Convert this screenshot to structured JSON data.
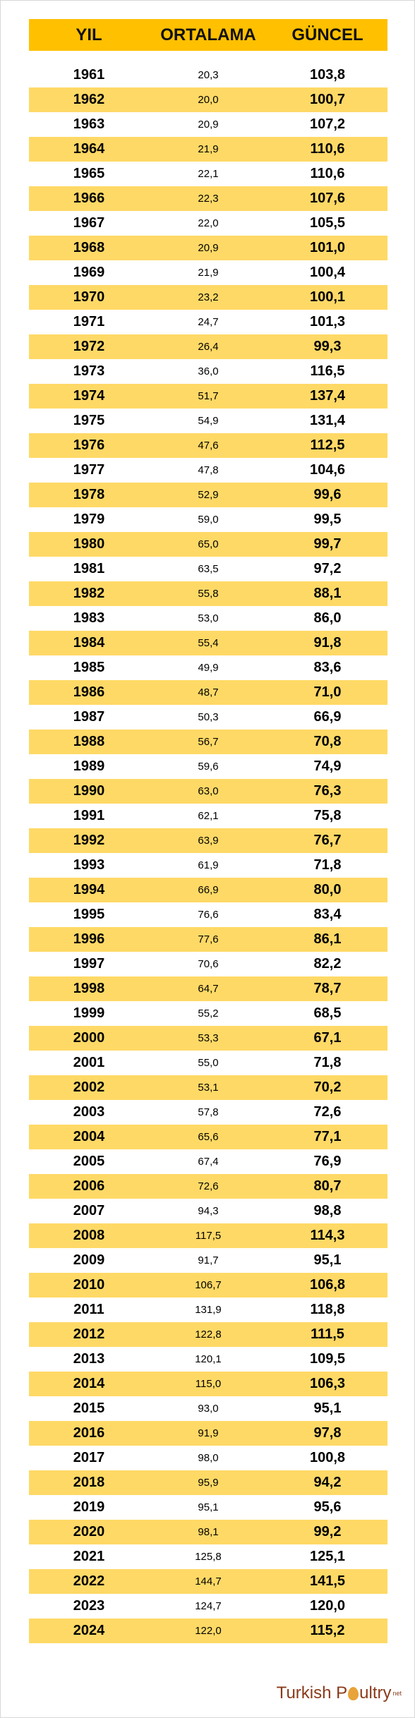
{
  "table": {
    "headers": {
      "year": "YIL",
      "average": "ORTALAMA",
      "current": "GÜNCEL"
    },
    "rows": [
      {
        "year": "1961",
        "average": "20,3",
        "current": "103,8"
      },
      {
        "year": "1962",
        "average": "20,0",
        "current": "100,7"
      },
      {
        "year": "1963",
        "average": "20,9",
        "current": "107,2"
      },
      {
        "year": "1964",
        "average": "21,9",
        "current": "110,6"
      },
      {
        "year": "1965",
        "average": "22,1",
        "current": "110,6"
      },
      {
        "year": "1966",
        "average": "22,3",
        "current": "107,6"
      },
      {
        "year": "1967",
        "average": "22,0",
        "current": "105,5"
      },
      {
        "year": "1968",
        "average": "20,9",
        "current": "101,0"
      },
      {
        "year": "1969",
        "average": "21,9",
        "current": "100,4"
      },
      {
        "year": "1970",
        "average": "23,2",
        "current": "100,1"
      },
      {
        "year": "1971",
        "average": "24,7",
        "current": "101,3"
      },
      {
        "year": "1972",
        "average": "26,4",
        "current": "99,3"
      },
      {
        "year": "1973",
        "average": "36,0",
        "current": "116,5"
      },
      {
        "year": "1974",
        "average": "51,7",
        "current": "137,4"
      },
      {
        "year": "1975",
        "average": "54,9",
        "current": "131,4"
      },
      {
        "year": "1976",
        "average": "47,6",
        "current": "112,5"
      },
      {
        "year": "1977",
        "average": "47,8",
        "current": "104,6"
      },
      {
        "year": "1978",
        "average": "52,9",
        "current": "99,6"
      },
      {
        "year": "1979",
        "average": "59,0",
        "current": "99,5"
      },
      {
        "year": "1980",
        "average": "65,0",
        "current": "99,7"
      },
      {
        "year": "1981",
        "average": "63,5",
        "current": "97,2"
      },
      {
        "year": "1982",
        "average": "55,8",
        "current": "88,1"
      },
      {
        "year": "1983",
        "average": "53,0",
        "current": "86,0"
      },
      {
        "year": "1984",
        "average": "55,4",
        "current": "91,8"
      },
      {
        "year": "1985",
        "average": "49,9",
        "current": "83,6"
      },
      {
        "year": "1986",
        "average": "48,7",
        "current": "71,0"
      },
      {
        "year": "1987",
        "average": "50,3",
        "current": "66,9"
      },
      {
        "year": "1988",
        "average": "56,7",
        "current": "70,8"
      },
      {
        "year": "1989",
        "average": "59,6",
        "current": "74,9"
      },
      {
        "year": "1990",
        "average": "63,0",
        "current": "76,3"
      },
      {
        "year": "1991",
        "average": "62,1",
        "current": "75,8"
      },
      {
        "year": "1992",
        "average": "63,9",
        "current": "76,7"
      },
      {
        "year": "1993",
        "average": "61,9",
        "current": "71,8"
      },
      {
        "year": "1994",
        "average": "66,9",
        "current": "80,0"
      },
      {
        "year": "1995",
        "average": "76,6",
        "current": "83,4"
      },
      {
        "year": "1996",
        "average": "77,6",
        "current": "86,1"
      },
      {
        "year": "1997",
        "average": "70,6",
        "current": "82,2"
      },
      {
        "year": "1998",
        "average": "64,7",
        "current": "78,7"
      },
      {
        "year": "1999",
        "average": "55,2",
        "current": "68,5"
      },
      {
        "year": "2000",
        "average": "53,3",
        "current": "67,1"
      },
      {
        "year": "2001",
        "average": "55,0",
        "current": "71,8"
      },
      {
        "year": "2002",
        "average": "53,1",
        "current": "70,2"
      },
      {
        "year": "2003",
        "average": "57,8",
        "current": "72,6"
      },
      {
        "year": "2004",
        "average": "65,6",
        "current": "77,1"
      },
      {
        "year": "2005",
        "average": "67,4",
        "current": "76,9"
      },
      {
        "year": "2006",
        "average": "72,6",
        "current": "80,7"
      },
      {
        "year": "2007",
        "average": "94,3",
        "current": "98,8"
      },
      {
        "year": "2008",
        "average": "117,5",
        "current": "114,3"
      },
      {
        "year": "2009",
        "average": "91,7",
        "current": "95,1"
      },
      {
        "year": "2010",
        "average": "106,7",
        "current": "106,8"
      },
      {
        "year": "2011",
        "average": "131,9",
        "current": "118,8"
      },
      {
        "year": "2012",
        "average": "122,8",
        "current": "111,5"
      },
      {
        "year": "2013",
        "average": "120,1",
        "current": "109,5"
      },
      {
        "year": "2014",
        "average": "115,0",
        "current": "106,3"
      },
      {
        "year": "2015",
        "average": "93,0",
        "current": "95,1"
      },
      {
        "year": "2016",
        "average": "91,9",
        "current": "97,8"
      },
      {
        "year": "2017",
        "average": "98,0",
        "current": "100,8"
      },
      {
        "year": "2018",
        "average": "95,9",
        "current": "94,2"
      },
      {
        "year": "2019",
        "average": "95,1",
        "current": "95,6"
      },
      {
        "year": "2020",
        "average": "98,1",
        "current": "99,2"
      },
      {
        "year": "2021",
        "average": "125,8",
        "current": "125,1"
      },
      {
        "year": "2022",
        "average": "144,7",
        "current": "141,5"
      },
      {
        "year": "2023",
        "average": "124,7",
        "current": "120,0"
      },
      {
        "year": "2024",
        "average": "122,0",
        "current": "115,2"
      }
    ]
  },
  "logo": {
    "text_start": "Turkish P",
    "text_end": "ultry",
    "tld": "net"
  },
  "colors": {
    "header": "#ffc000",
    "alt_row": "#ffd966",
    "logo": "#8a3a1a",
    "egg": "#e8a33a"
  }
}
